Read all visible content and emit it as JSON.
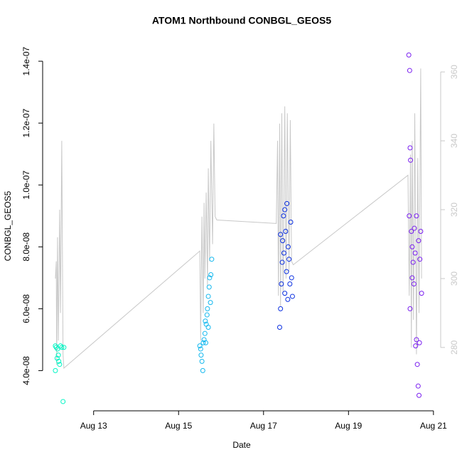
{
  "chart_data": {
    "type": "scatter",
    "title": "ATOM1 Northbound CONBGL_GEOS5",
    "x_label": "Date",
    "y_label": "CONBGL_GEOS5",
    "xlim": [
      11.8,
      21.17
    ],
    "ylim": [
      2.7e-08,
      1.46e-07
    ],
    "y2lim": [
      261.6,
      368.5
    ],
    "xticks": [
      {
        "value": 13,
        "label": "Aug 13"
      },
      {
        "value": 15,
        "label": "Aug 15"
      },
      {
        "value": 17,
        "label": "Aug 17"
      },
      {
        "value": 19,
        "label": "Aug 19"
      },
      {
        "value": 21,
        "label": "Aug 21"
      }
    ],
    "yticks": [
      {
        "value": 4e-08,
        "label": "4.0e-08"
      },
      {
        "value": 6e-08,
        "label": "6.0e-08"
      },
      {
        "value": 8e-08,
        "label": "8.0e-08"
      },
      {
        "value": 1e-07,
        "label": "1.0e-07"
      },
      {
        "value": 1.2e-07,
        "label": "1.2e-07"
      },
      {
        "value": 1.4e-07,
        "label": "1.4e-07"
      }
    ],
    "y2ticks": [
      280,
      300,
      320,
      340,
      360
    ],
    "series": [
      {
        "type": "line",
        "axis": "y2",
        "color": "#c8c8c8",
        "x": [
          12.1,
          12.12,
          12.13,
          12.15,
          12.17,
          12.2,
          12.22,
          12.25,
          12.28,
          12.3,
          15.5,
          15.52,
          15.55,
          15.58,
          15.6,
          15.62,
          15.65,
          15.68,
          15.7,
          15.73,
          15.76,
          15.8,
          15.83,
          15.86,
          15.9,
          17.3,
          17.33,
          17.35,
          17.38,
          17.4,
          17.43,
          17.46,
          17.5,
          17.53,
          17.56,
          17.6,
          17.63,
          17.66,
          17.7,
          20.4,
          20.43,
          20.46,
          20.48,
          20.5,
          20.53,
          20.56,
          20.6,
          20.63,
          20.66,
          20.7,
          20.72
        ],
        "values": [
          300,
          305,
          275,
          312,
          282,
          320,
          290,
          340,
          278,
          274,
          308,
          282,
          318,
          290,
          322,
          300,
          325,
          298,
          332,
          305,
          340,
          310,
          345,
          318,
          317,
          316,
          340,
          295,
          345,
          292,
          348,
          296,
          350,
          300,
          348,
          302,
          346,
          305,
          304,
          330,
          295,
          336,
          280,
          340,
          288,
          348,
          278,
          335,
          290,
          361,
          300
        ]
      },
      {
        "type": "scatter",
        "color": "#00f5c4",
        "x": [
          12.1,
          12.12,
          12.15,
          12.17,
          12.18,
          12.2,
          12.1,
          12.22,
          12.25,
          12.3,
          12.28,
          12.14
        ],
        "values": [
          4.8e-08,
          4.75e-08,
          4.7e-08,
          4.5e-08,
          4.3e-08,
          4.2e-08,
          4e-08,
          4.8e-08,
          4.75e-08,
          4.75e-08,
          3e-08,
          4.4e-08
        ]
      },
      {
        "type": "scatter",
        "color": "#14b8ee",
        "x": [
          15.5,
          15.52,
          15.53,
          15.55,
          15.57,
          15.58,
          15.6,
          15.62,
          15.63,
          15.65,
          15.67,
          15.68,
          15.7,
          15.72,
          15.73,
          15.75,
          15.76,
          15.78,
          15.64,
          15.7
        ],
        "values": [
          4.8e-08,
          4.7e-08,
          4.5e-08,
          4.3e-08,
          4e-08,
          4.9e-08,
          5e-08,
          5.2e-08,
          5.6e-08,
          5.5e-08,
          5.8e-08,
          6e-08,
          6.4e-08,
          6.7e-08,
          7e-08,
          6.2e-08,
          7.1e-08,
          7.6e-08,
          4.9e-08,
          5.4e-08
        ]
      },
      {
        "type": "scatter",
        "color": "#0a2fe0",
        "x": [
          17.38,
          17.4,
          17.42,
          17.44,
          17.45,
          17.47,
          17.48,
          17.5,
          17.52,
          17.54,
          17.55,
          17.57,
          17.58,
          17.6,
          17.62,
          17.64,
          17.66,
          17.68,
          17.4,
          17.5
        ],
        "values": [
          5.4e-08,
          6e-08,
          6.8e-08,
          7.5e-08,
          8.2e-08,
          9e-08,
          7.8e-08,
          6.5e-08,
          8.5e-08,
          7.2e-08,
          9.4e-08,
          6.3e-08,
          8e-08,
          7.6e-08,
          6.8e-08,
          8.8e-08,
          7e-08,
          6.4e-08,
          8.4e-08,
          9.2e-08
        ]
      },
      {
        "type": "scatter",
        "color": "#7a1ff0",
        "x": [
          20.42,
          20.44,
          20.45,
          20.46,
          20.43,
          20.48,
          20.5,
          20.52,
          20.54,
          20.55,
          20.57,
          20.58,
          20.6,
          20.62,
          20.64,
          20.66,
          20.65,
          20.68,
          20.7,
          20.72,
          20.45,
          20.5,
          20.6,
          20.67
        ],
        "values": [
          1.42e-07,
          1.37e-07,
          1.12e-07,
          1.08e-07,
          9e-08,
          8.5e-08,
          8e-08,
          7.5e-08,
          6.8e-08,
          8.6e-08,
          7.8e-08,
          4.8e-08,
          5e-08,
          4.2e-08,
          3.5e-08,
          3.2e-08,
          8.2e-08,
          7.6e-08,
          8.5e-08,
          6.5e-08,
          6e-08,
          7e-08,
          9e-08,
          4.9e-08
        ]
      }
    ]
  }
}
